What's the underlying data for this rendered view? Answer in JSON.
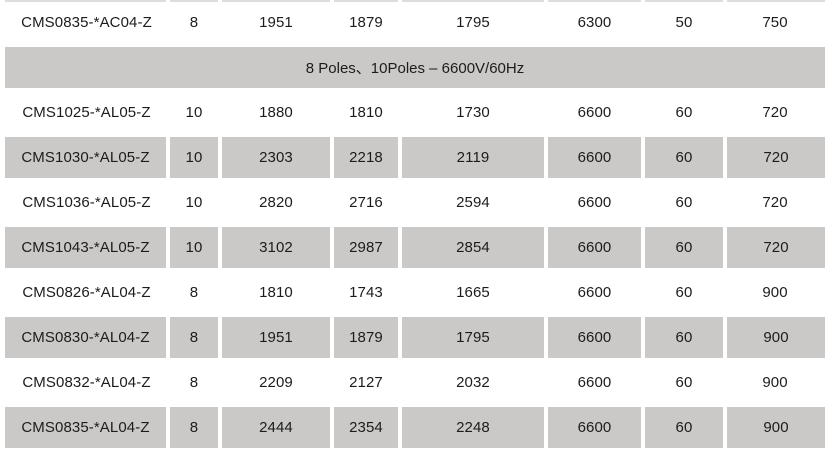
{
  "colors": {
    "stripe_gray": "#cac9c7",
    "text": "#1c1c1c",
    "background": "#ffffff"
  },
  "table": {
    "section_banner": "8 Poles、10Poles – 6600V/60Hz",
    "rows": [
      {
        "cells": [
          "CMS0835-*AC04-Z",
          "8",
          "1951",
          "1879",
          "1795",
          "6300",
          "50",
          "750"
        ]
      },
      {
        "cells": [
          "CMS1025-*AL05-Z",
          "10",
          "1880",
          "1810",
          "1730",
          "6600",
          "60",
          "720"
        ]
      },
      {
        "cells": [
          "CMS1030-*AL05-Z",
          "10",
          "2303",
          "2218",
          "2119",
          "6600",
          "60",
          "720"
        ]
      },
      {
        "cells": [
          "CMS1036-*AL05-Z",
          "10",
          "2820",
          "2716",
          "2594",
          "6600",
          "60",
          "720"
        ]
      },
      {
        "cells": [
          "CMS1043-*AL05-Z",
          "10",
          "3102",
          "2987",
          "2854",
          "6600",
          "60",
          "720"
        ]
      },
      {
        "cells": [
          "CMS0826-*AL04-Z",
          "8",
          "1810",
          "1743",
          "1665",
          "6600",
          "60",
          "900"
        ]
      },
      {
        "cells": [
          "CMS0830-*AL04-Z",
          "8",
          "1951",
          "1879",
          "1795",
          "6600",
          "60",
          "900"
        ]
      },
      {
        "cells": [
          "CMS0832-*AL04-Z",
          "8",
          "2209",
          "2127",
          "2032",
          "6600",
          "60",
          "900"
        ]
      },
      {
        "cells": [
          "CMS0835-*AL04-Z",
          "8",
          "2444",
          "2354",
          "2248",
          "6600",
          "60",
          "900"
        ]
      }
    ]
  }
}
